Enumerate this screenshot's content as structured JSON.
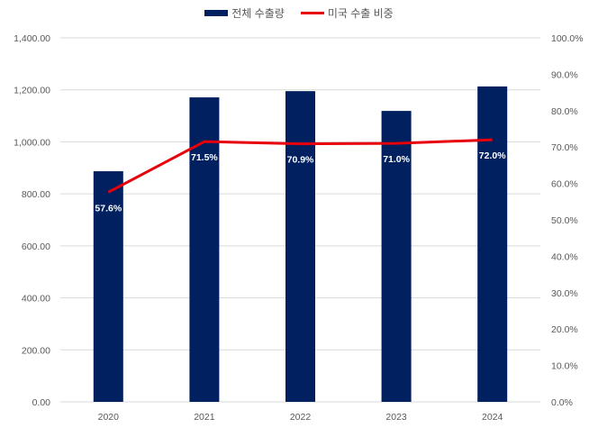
{
  "legend": {
    "bar_label": "전체 수출량",
    "line_label": "미국 수출 비중"
  },
  "colors": {
    "bar": "#002060",
    "line": "#e8000b",
    "grid": "#d9d9d9",
    "text": "#595959"
  },
  "chart_data": {
    "type": "bar+line",
    "title": "",
    "categories": [
      "2020",
      "2021",
      "2022",
      "2023",
      "2024"
    ],
    "series": [
      {
        "name": "전체 수출량",
        "type": "bar",
        "axis": "left",
        "values": [
          887,
          1171,
          1195,
          1119,
          1213
        ]
      },
      {
        "name": "미국 수출 비중",
        "type": "line",
        "axis": "right",
        "values": [
          57.6,
          71.5,
          70.9,
          71.0,
          72.0
        ],
        "labels": [
          "57.6%",
          "71.5%",
          "70.9%",
          "71.0%",
          "72.0%"
        ]
      }
    ],
    "y_left": {
      "ylim": [
        0,
        1400
      ],
      "ticks": [
        "0.00",
        "200.00",
        "400.00",
        "600.00",
        "800.00",
        "1,000.00",
        "1,200.00",
        "1,400.00"
      ]
    },
    "y_right": {
      "ylim": [
        0,
        100
      ],
      "ticks": [
        "0.0%",
        "10.0%",
        "20.0%",
        "30.0%",
        "40.0%",
        "50.0%",
        "60.0%",
        "70.0%",
        "80.0%",
        "90.0%",
        "100.0%"
      ]
    },
    "xlabel": "",
    "ylabel": "",
    "grid": true,
    "legend_position": "top"
  }
}
